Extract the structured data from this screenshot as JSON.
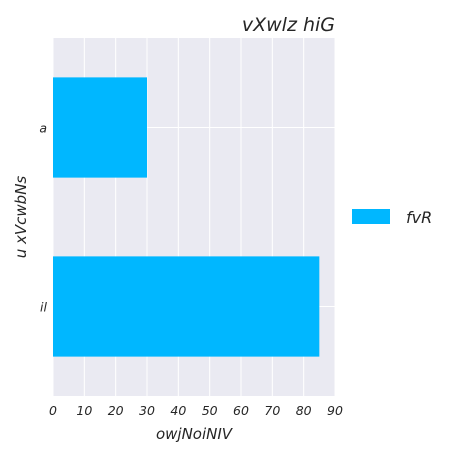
{
  "chart_data": {
    "type": "bar",
    "orientation": "horizontal",
    "title": "vXwlz hiG",
    "xlabel": "owjNoiNIV",
    "ylabel": "u xVcwbNs",
    "categories": [
      "a",
      "il"
    ],
    "series": [
      {
        "name": "fvR",
        "values": [
          30,
          85
        ],
        "color": "#00b7ff"
      }
    ],
    "xlim": [
      0,
      90
    ],
    "xticks": [
      "0",
      "10",
      "20",
      "30",
      "40",
      "50",
      "60",
      "70",
      "80",
      "90"
    ],
    "grid": true,
    "legend_position": "right",
    "background": "#eaeaf2"
  }
}
